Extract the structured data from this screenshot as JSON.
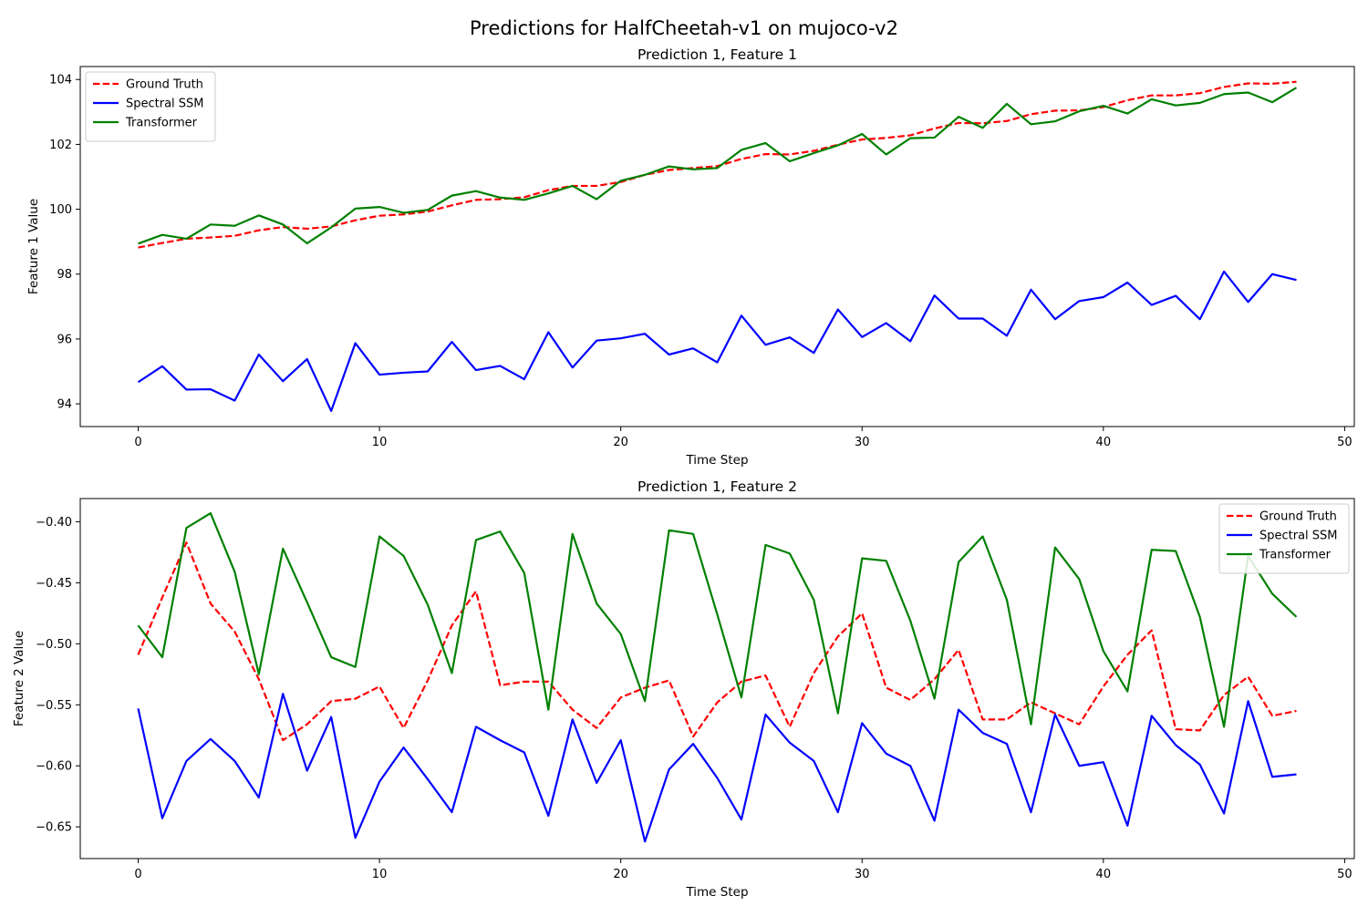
{
  "figure_title": "Predictions for HalfCheetah-v1 on mujoco-v2",
  "chart_data": [
    {
      "type": "line",
      "title": "Prediction 1, Feature 1",
      "xlabel": "Time Step",
      "ylabel": "Feature 1 Value",
      "xlim": [
        -2.4,
        50.4
      ],
      "ylim": [
        93.3,
        104.4
      ],
      "xticks": [
        0,
        10,
        20,
        30,
        40,
        50
      ],
      "yticks": [
        94,
        96,
        98,
        100,
        102,
        104
      ],
      "ytick_labels": [
        "94",
        "96",
        "98",
        "100",
        "102",
        "104"
      ],
      "grid": false,
      "legend_position": "upper left",
      "series": [
        {
          "name": "Ground Truth",
          "color": "#ff0000",
          "style": "dashed",
          "values": [
            98.82,
            98.96,
            99.09,
            99.13,
            99.18,
            99.35,
            99.45,
            99.4,
            99.47,
            99.66,
            99.8,
            99.84,
            99.93,
            100.12,
            100.29,
            100.31,
            100.37,
            100.59,
            100.72,
            100.72,
            100.84,
            101.06,
            101.21,
            101.27,
            101.33,
            101.55,
            101.7,
            101.69,
            101.8,
            101.99,
            102.15,
            102.2,
            102.28,
            102.49,
            102.66,
            102.65,
            102.72,
            102.93,
            103.04,
            103.05,
            103.15,
            103.36,
            103.51,
            103.51,
            103.58,
            103.77,
            103.88,
            103.87,
            103.93
          ]
        },
        {
          "name": "Spectral SSM",
          "color": "#0000ff",
          "style": "solid",
          "values": [
            94.67,
            95.16,
            94.44,
            94.45,
            94.1,
            95.52,
            94.7,
            95.38,
            93.78,
            95.87,
            94.9,
            94.96,
            95.0,
            95.91,
            95.04,
            95.17,
            94.76,
            96.21,
            95.12,
            95.95,
            96.02,
            96.16,
            95.52,
            95.71,
            95.28,
            96.72,
            95.82,
            96.05,
            95.57,
            96.91,
            96.06,
            96.49,
            95.93,
            97.34,
            96.63,
            96.63,
            96.1,
            97.52,
            96.61,
            97.17,
            97.29,
            97.74,
            97.05,
            97.33,
            96.61,
            98.08,
            97.14,
            98.0,
            97.82
          ]
        },
        {
          "name": "Transformer",
          "color": "#008000",
          "style": "solid",
          "values": [
            98.94,
            99.21,
            99.09,
            99.53,
            99.49,
            99.81,
            99.53,
            98.95,
            99.44,
            100.02,
            100.07,
            99.89,
            99.98,
            100.42,
            100.56,
            100.36,
            100.29,
            100.49,
            100.72,
            100.31,
            100.88,
            101.06,
            101.32,
            101.23,
            101.27,
            101.83,
            102.04,
            101.48,
            101.73,
            101.97,
            102.32,
            101.69,
            102.19,
            102.21,
            102.85,
            102.51,
            103.25,
            102.62,
            102.71,
            103.02,
            103.19,
            102.95,
            103.39,
            103.2,
            103.28,
            103.55,
            103.6,
            103.3,
            103.75
          ]
        }
      ]
    },
    {
      "type": "line",
      "title": "Prediction 1, Feature 2",
      "xlabel": "Time Step",
      "ylabel": "Feature 2 Value",
      "xlim": [
        -2.4,
        50.4
      ],
      "ylim": [
        -0.676,
        -0.381
      ],
      "xticks": [
        0,
        10,
        20,
        30,
        40,
        50
      ],
      "yticks": [
        -0.4,
        -0.45,
        -0.5,
        -0.55,
        -0.6,
        -0.65
      ],
      "ytick_labels": [
        "−0.40",
        "−0.45",
        "−0.50",
        "−0.55",
        "−0.60",
        "−0.65"
      ],
      "grid": false,
      "legend_position": "upper right",
      "series": [
        {
          "name": "Ground Truth",
          "color": "#ff0000",
          "style": "dashed",
          "values": [
            -0.509,
            -0.462,
            -0.417,
            -0.467,
            -0.49,
            -0.529,
            -0.579,
            -0.566,
            -0.547,
            -0.545,
            -0.535,
            -0.569,
            -0.53,
            -0.485,
            -0.457,
            -0.534,
            -0.531,
            -0.531,
            -0.554,
            -0.569,
            -0.544,
            -0.536,
            -0.53,
            -0.576,
            -0.548,
            -0.531,
            -0.526,
            -0.568,
            -0.524,
            -0.494,
            -0.475,
            -0.536,
            -0.546,
            -0.529,
            -0.505,
            -0.562,
            -0.562,
            -0.548,
            -0.557,
            -0.566,
            -0.535,
            -0.509,
            -0.489,
            -0.57,
            -0.571,
            -0.542,
            -0.527,
            -0.559,
            -0.555
          ]
        },
        {
          "name": "Spectral SSM",
          "color": "#0000ff",
          "style": "solid",
          "values": [
            -0.553,
            -0.643,
            -0.596,
            -0.578,
            -0.596,
            -0.626,
            -0.541,
            -0.604,
            -0.56,
            -0.659,
            -0.613,
            -0.585,
            -0.611,
            -0.638,
            -0.568,
            -0.579,
            -0.589,
            -0.641,
            -0.562,
            -0.614,
            -0.579,
            -0.662,
            -0.603,
            -0.582,
            -0.61,
            -0.644,
            -0.558,
            -0.581,
            -0.596,
            -0.638,
            -0.565,
            -0.59,
            -0.6,
            -0.645,
            -0.554,
            -0.573,
            -0.582,
            -0.638,
            -0.558,
            -0.6,
            -0.597,
            -0.649,
            -0.559,
            -0.583,
            -0.599,
            -0.639,
            -0.547,
            -0.609,
            -0.607
          ]
        },
        {
          "name": "Transformer",
          "color": "#008000",
          "style": "solid",
          "values": [
            -0.485,
            -0.511,
            -0.405,
            -0.393,
            -0.441,
            -0.525,
            -0.422,
            -0.466,
            -0.511,
            -0.519,
            -0.412,
            -0.428,
            -0.468,
            -0.524,
            -0.415,
            -0.408,
            -0.442,
            -0.554,
            -0.41,
            -0.467,
            -0.492,
            -0.547,
            -0.407,
            -0.41,
            -0.476,
            -0.544,
            -0.419,
            -0.426,
            -0.464,
            -0.557,
            -0.43,
            -0.432,
            -0.481,
            -0.545,
            -0.433,
            -0.412,
            -0.464,
            -0.566,
            -0.421,
            -0.447,
            -0.506,
            -0.539,
            -0.423,
            -0.424,
            -0.478,
            -0.568,
            -0.428,
            -0.459,
            -0.478
          ]
        }
      ]
    }
  ]
}
